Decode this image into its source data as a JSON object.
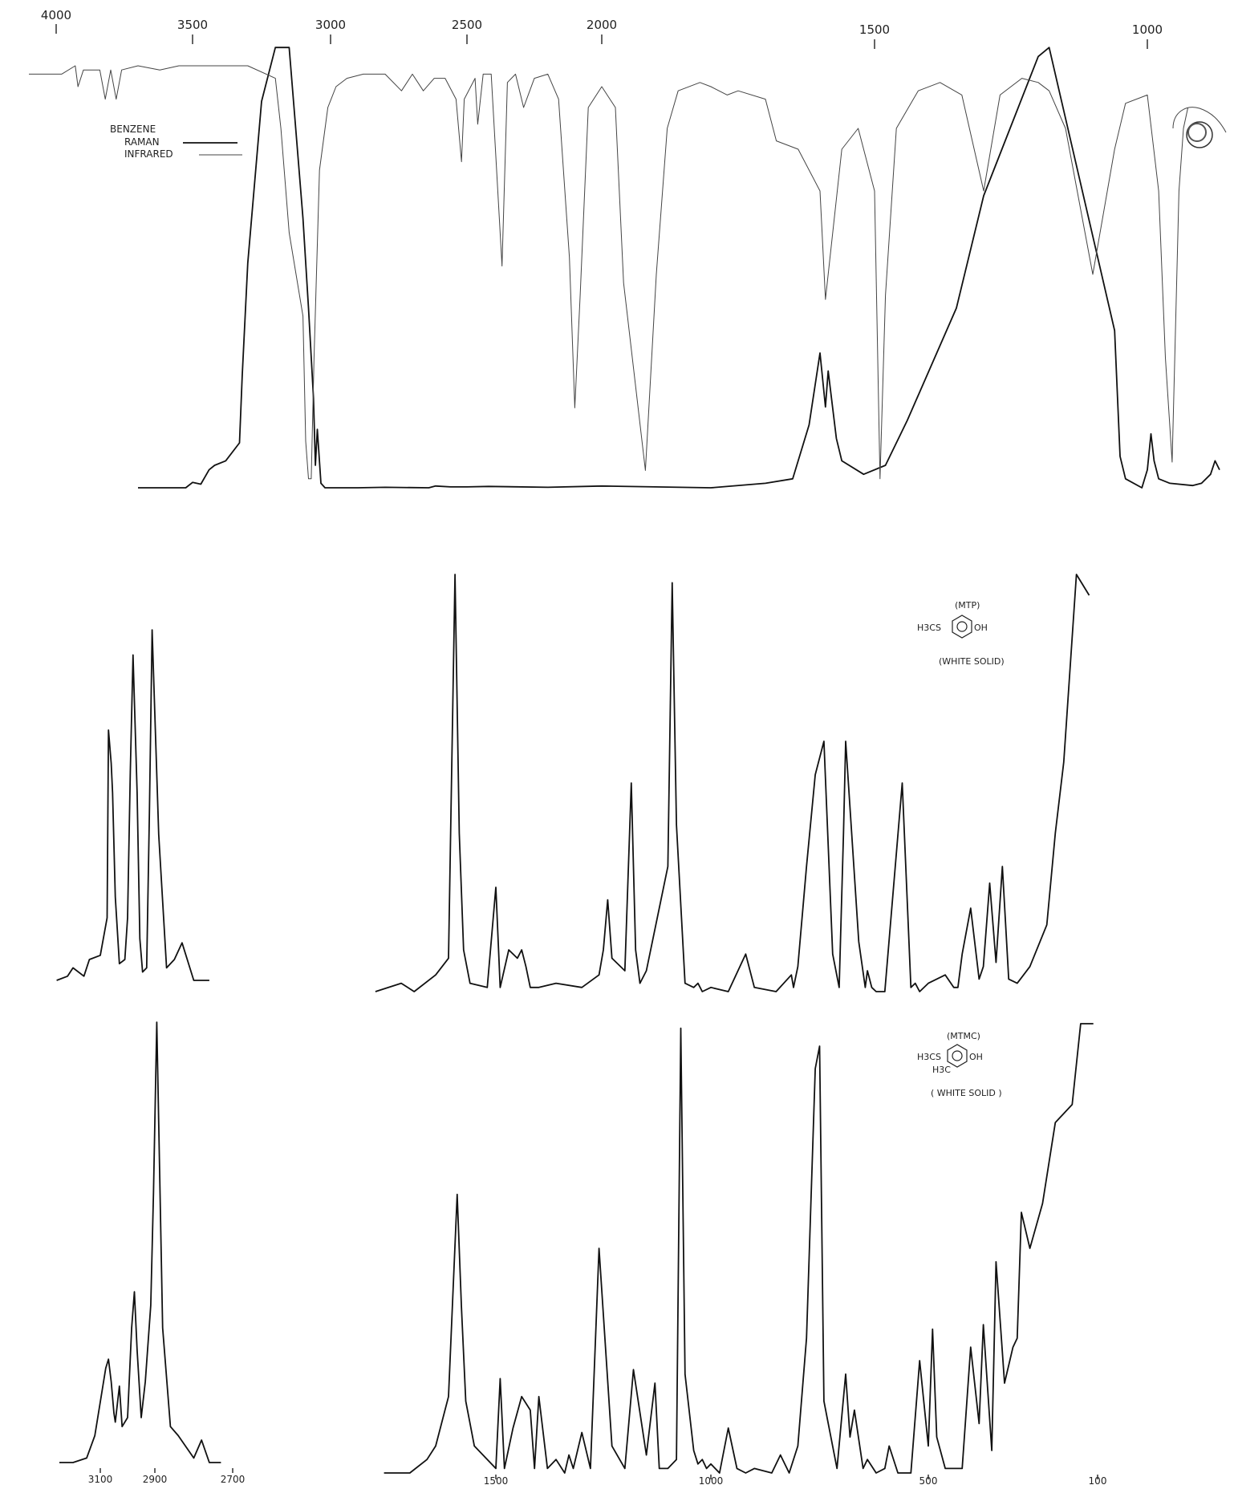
{
  "chart_data": [
    {
      "type": "line",
      "legend": {
        "title": "BENZENE",
        "entries": [
          "RAMAN",
          "INFRARED"
        ],
        "placement": "top-left"
      },
      "x_ticks": [
        "4000",
        "3500",
        "3000",
        "2500",
        "2000",
        "1500",
        "1000"
      ],
      "series": [
        {
          "name": "RAMAN",
          "x": [
            3700,
            3525,
            3500,
            3470,
            3440,
            3420,
            3380,
            3330,
            3320,
            3300,
            3250,
            3200,
            3150,
            3100,
            3080,
            3062,
            3055,
            3048,
            3035,
            3020,
            3000,
            2948,
            2940,
            2900,
            2800,
            2640,
            2615,
            2560,
            2500,
            2420,
            2200,
            2000,
            1800,
            1700,
            1650,
            1620,
            1600,
            1590,
            1585,
            1570,
            1560,
            1520,
            1480,
            1440,
            1350,
            1300,
            1200,
            1180,
            1060,
            1050,
            1040,
            1010,
            1000,
            992,
            985,
            975,
            950,
            900,
            880,
            860,
            850,
            840
          ],
          "y": [
            0.0,
            0.0,
            0.012,
            0.008,
            0.04,
            0.05,
            0.06,
            0.1,
            0.25,
            0.5,
            0.86,
            0.98,
            0.98,
            0.6,
            0.4,
            0.2,
            0.05,
            0.13,
            0.01,
            0.0,
            0.0,
            0.0,
            0.0,
            0.0,
            0.001,
            0.0,
            0.004,
            0.002,
            0.002,
            0.003,
            0.001,
            0.004,
            0.0,
            0.01,
            0.02,
            0.14,
            0.3,
            0.18,
            0.26,
            0.11,
            0.06,
            0.03,
            0.05,
            0.15,
            0.4,
            0.65,
            0.96,
            0.98,
            0.35,
            0.07,
            0.02,
            0.0,
            0.04,
            0.12,
            0.06,
            0.02,
            0.01,
            0.005,
            0.01,
            0.03,
            0.06,
            0.04
          ]
        },
        {
          "name": "INFRARED",
          "x": [
            4100,
            3980,
            3930,
            3920,
            3900,
            3840,
            3820,
            3800,
            3780,
            3760,
            3700,
            3620,
            3550,
            3480,
            3300,
            3200,
            3180,
            3150,
            3100,
            3090,
            3080,
            3070,
            3060,
            3040,
            3010,
            2980,
            2940,
            2880,
            2800,
            2740,
            2700,
            2660,
            2620,
            2580,
            2540,
            2520,
            2510,
            2470,
            2460,
            2440,
            2410,
            2370,
            2350,
            2320,
            2290,
            2250,
            2200,
            2160,
            2120,
            2100,
            2080,
            2050,
            2000,
            1975,
            1960,
            1920,
            1900,
            1880,
            1860,
            1820,
            1800,
            1770,
            1750,
            1700,
            1680,
            1640,
            1600,
            1590,
            1560,
            1530,
            1500,
            1490,
            1480,
            1460,
            1420,
            1380,
            1340,
            1300,
            1270,
            1230,
            1200,
            1180,
            1150,
            1100,
            1060,
            1040,
            1000,
            975,
            960,
            945,
            930,
            920,
            910
          ],
          "y": [
            -0.02,
            -0.02,
            0.0,
            -0.05,
            -0.01,
            -0.01,
            -0.08,
            -0.01,
            -0.08,
            -0.01,
            0.0,
            -0.01,
            0.0,
            0.0,
            0.0,
            -0.03,
            -0.15,
            -0.4,
            -0.6,
            -0.9,
            -0.99,
            -0.99,
            -0.7,
            -0.25,
            -0.1,
            -0.05,
            -0.03,
            -0.02,
            -0.02,
            -0.06,
            -0.02,
            -0.06,
            -0.03,
            -0.03,
            -0.08,
            -0.23,
            -0.08,
            -0.03,
            -0.14,
            -0.02,
            -0.02,
            -0.48,
            -0.04,
            -0.02,
            -0.1,
            -0.03,
            -0.02,
            -0.08,
            -0.46,
            -0.82,
            -0.55,
            -0.1,
            -0.05,
            -0.1,
            -0.52,
            -0.97,
            -0.5,
            -0.15,
            -0.06,
            -0.04,
            -0.05,
            -0.07,
            -0.06,
            -0.08,
            -0.18,
            -0.2,
            -0.3,
            -0.56,
            -0.2,
            -0.15,
            -0.3,
            -0.99,
            -0.55,
            -0.15,
            -0.06,
            -0.04,
            -0.07,
            -0.3,
            -0.07,
            -0.03,
            -0.04,
            -0.06,
            -0.15,
            -0.5,
            -0.2,
            -0.09,
            -0.07,
            -0.3,
            -0.7,
            -0.95,
            -0.3,
            -0.15,
            -0.1
          ]
        }
      ]
    },
    {
      "type": "line",
      "legend": {
        "title": "(MTP)",
        "entries": [
          "H3CS",
          "OH"
        ],
        "note": "(WHITE SOLID)",
        "placement": "top-right"
      },
      "x_ticks": [],
      "series": [
        {
          "x": [
            3260,
            3220,
            3200,
            3160,
            3140,
            3100,
            3075,
            3070,
            3060,
            3055,
            3045,
            3030,
            3010,
            3000,
            2990,
            2980,
            2965,
            2955,
            2945,
            2930,
            2920,
            2910,
            2890,
            2870,
            2850,
            2830,
            2800,
            2760
          ],
          "y": [
            0.0,
            0.01,
            0.03,
            0.01,
            0.05,
            0.06,
            0.15,
            0.6,
            0.52,
            0.45,
            0.2,
            0.04,
            0.05,
            0.15,
            0.5,
            0.78,
            0.45,
            0.1,
            0.02,
            0.03,
            0.4,
            0.84,
            0.35,
            0.03,
            0.05,
            0.09,
            0.0,
            0.0
          ]
        },
        {
          "x": [
            1780,
            1720,
            1690,
            1640,
            1610,
            1595,
            1585,
            1575,
            1560,
            1520,
            1500,
            1490,
            1470,
            1450,
            1440,
            1430,
            1420,
            1400,
            1360,
            1300,
            1260,
            1250,
            1240,
            1230,
            1200,
            1185,
            1175,
            1165,
            1150,
            1100,
            1090,
            1080,
            1060,
            1040,
            1030,
            1020,
            1000,
            960,
            920,
            900,
            850,
            815,
            810,
            800,
            780,
            760,
            740,
            720,
            705,
            695,
            690,
            660,
            645,
            640,
            630,
            620,
            600,
            560,
            540,
            530,
            520,
            500,
            460,
            440,
            430,
            420,
            400,
            380,
            370,
            355,
            340,
            325,
            310,
            290,
            260,
            220,
            200,
            180,
            150,
            120
          ],
          "y": [
            0.0,
            0.02,
            0.0,
            0.04,
            0.08,
            1.0,
            0.38,
            0.1,
            0.02,
            0.01,
            0.25,
            0.01,
            0.1,
            0.08,
            0.1,
            0.06,
            0.01,
            0.01,
            0.02,
            0.01,
            0.04,
            0.1,
            0.22,
            0.08,
            0.05,
            0.5,
            0.1,
            0.02,
            0.05,
            0.3,
            0.98,
            0.4,
            0.02,
            0.01,
            0.02,
            0.0,
            0.01,
            0.0,
            0.09,
            0.01,
            0.0,
            0.04,
            0.01,
            0.06,
            0.3,
            0.52,
            0.6,
            0.09,
            0.01,
            0.38,
            0.6,
            0.12,
            0.01,
            0.05,
            0.01,
            0.0,
            0.0,
            0.5,
            0.01,
            0.02,
            0.0,
            0.02,
            0.04,
            0.01,
            0.01,
            0.09,
            0.2,
            0.03,
            0.06,
            0.26,
            0.07,
            0.3,
            0.03,
            0.02,
            0.06,
            0.16,
            0.38,
            0.55,
            1.0,
            0.95
          ]
        }
      ]
    },
    {
      "type": "line",
      "legend": {
        "title": "(MTMC)",
        "entries": [
          "H3CS",
          "OH",
          "H3C"
        ],
        "note": "( WHITE SOLID )",
        "placement": "top-right"
      },
      "x_ticks": [
        "3100",
        "2900",
        "2700",
        "1500",
        "1000",
        "500",
        "100"
      ],
      "series": [
        {
          "x": [
            3250,
            3200,
            3150,
            3120,
            3080,
            3070,
            3060,
            3050,
            3045,
            3030,
            3020,
            3000,
            2985,
            2975,
            2965,
            2950,
            2935,
            2915,
            2905,
            2895,
            2880,
            2860,
            2840,
            2800,
            2780,
            2760,
            2730
          ],
          "y": [
            0.0,
            0.0,
            0.01,
            0.06,
            0.21,
            0.23,
            0.18,
            0.11,
            0.09,
            0.17,
            0.08,
            0.1,
            0.3,
            0.38,
            0.25,
            0.1,
            0.18,
            0.35,
            0.6,
            0.98,
            0.3,
            0.08,
            0.06,
            0.01,
            0.05,
            0.0,
            0.0
          ]
        },
        {
          "x": [
            1760,
            1700,
            1660,
            1640,
            1610,
            1590,
            1580,
            1570,
            1550,
            1500,
            1490,
            1480,
            1460,
            1440,
            1420,
            1410,
            1400,
            1380,
            1360,
            1340,
            1330,
            1320,
            1300,
            1280,
            1260,
            1230,
            1200,
            1180,
            1150,
            1130,
            1120,
            1100,
            1080,
            1070,
            1060,
            1040,
            1030,
            1020,
            1010,
            1000,
            980,
            960,
            940,
            920,
            900,
            860,
            840,
            820,
            800,
            780,
            760,
            750,
            740,
            730,
            710,
            690,
            680,
            670,
            650,
            640,
            620,
            600,
            590,
            570,
            540,
            520,
            500,
            490,
            480,
            460,
            420,
            400,
            380,
            370,
            350,
            340,
            320,
            300,
            290,
            280,
            260,
            230,
            200,
            180,
            160,
            140,
            120,
            110
          ],
          "y": [
            0.0,
            0.0,
            0.03,
            0.06,
            0.17,
            0.62,
            0.37,
            0.16,
            0.06,
            0.01,
            0.21,
            0.01,
            0.1,
            0.17,
            0.14,
            0.01,
            0.17,
            0.01,
            0.03,
            0.0,
            0.04,
            0.01,
            0.09,
            0.01,
            0.5,
            0.06,
            0.01,
            0.23,
            0.04,
            0.2,
            0.01,
            0.01,
            0.03,
            0.99,
            0.22,
            0.05,
            0.02,
            0.03,
            0.01,
            0.02,
            0.0,
            0.1,
            0.01,
            0.0,
            0.01,
            0.0,
            0.04,
            0.0,
            0.06,
            0.3,
            0.9,
            0.95,
            0.16,
            0.11,
            0.01,
            0.22,
            0.08,
            0.14,
            0.01,
            0.03,
            0.0,
            0.01,
            0.06,
            0.0,
            0.0,
            0.25,
            0.06,
            0.32,
            0.08,
            0.01,
            0.01,
            0.28,
            0.11,
            0.33,
            0.05,
            0.47,
            0.2,
            0.28,
            0.3,
            0.58,
            0.5,
            0.6,
            0.78,
            0.8,
            0.82,
            1.0,
            1.0,
            1.0
          ]
        }
      ]
    }
  ]
}
